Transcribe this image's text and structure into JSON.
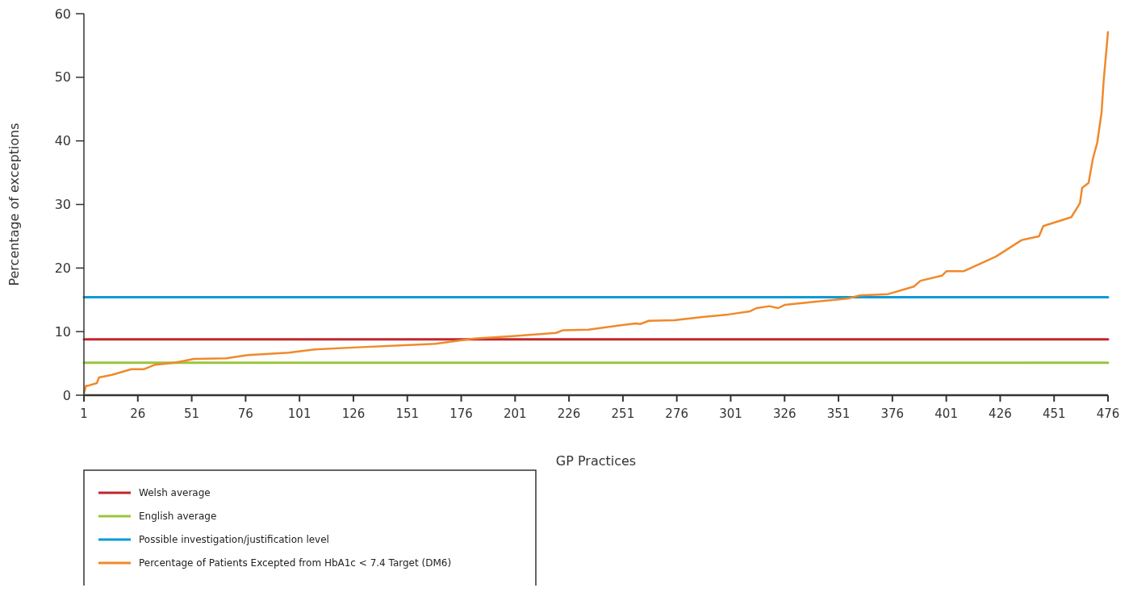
{
  "chart_data": {
    "type": "line",
    "xlabel": "GP Practices",
    "ylabel": "Percentage of exceptions",
    "xlim": [
      1,
      476
    ],
    "xticks": [
      1,
      26,
      51,
      76,
      101,
      126,
      151,
      176,
      201,
      226,
      251,
      276,
      301,
      326,
      351,
      376,
      401,
      426,
      451,
      476
    ],
    "ylim": [
      0,
      60
    ],
    "yticks": [
      0,
      10,
      20,
      30,
      40,
      50,
      60
    ],
    "grid": false,
    "legend": "bottom left",
    "line_style": "solid",
    "marker": "none",
    "series": [
      {
        "name": "Welsh average",
        "color": "#c0272d",
        "x": [
          1,
          476
        ],
        "values": [
          8.8,
          8.8
        ]
      },
      {
        "name": "English average",
        "color": "#9bc53d",
        "x": [
          1,
          476
        ],
        "values": [
          5.1,
          5.1
        ]
      },
      {
        "name": "Possible investigation/justification level",
        "color": "#0a9ad7",
        "x": [
          1,
          476
        ],
        "values": [
          15.4,
          15.4
        ]
      },
      {
        "name": "Percentage of Patients Excepted from HbA1c < 7.4 Target (DM6)",
        "color": "#f0892b",
        "x": [
          1,
          2,
          3,
          7,
          8,
          14,
          23,
          29,
          34,
          43,
          52,
          67,
          77,
          96,
          108,
          126,
          152,
          164,
          182,
          200,
          220,
          223,
          235,
          250,
          257,
          259,
          263,
          275,
          288,
          300,
          310,
          313,
          319,
          323,
          326,
          337,
          355,
          361,
          374,
          386,
          389,
          399,
          401,
          409,
          424,
          436,
          444,
          446,
          459,
          463,
          464,
          467,
          469,
          471,
          473,
          474,
          476
        ],
        "values": [
          0.3,
          1.5,
          1.5,
          1.9,
          2.8,
          3.2,
          4.1,
          4.1,
          4.8,
          5.1,
          5.7,
          5.8,
          6.3,
          6.7,
          7.2,
          7.5,
          7.9,
          8.1,
          8.9,
          9.3,
          9.8,
          10.2,
          10.3,
          11.0,
          11.3,
          11.2,
          11.7,
          11.8,
          12.3,
          12.7,
          13.2,
          13.7,
          14.0,
          13.7,
          14.2,
          14.6,
          15.2,
          15.7,
          15.9,
          17.1,
          18.0,
          18.8,
          19.5,
          19.5,
          21.8,
          24.4,
          25.0,
          26.6,
          28.0,
          30.2,
          32.6,
          33.4,
          37.2,
          39.7,
          44.4,
          49.5,
          57.1
        ]
      }
    ]
  }
}
